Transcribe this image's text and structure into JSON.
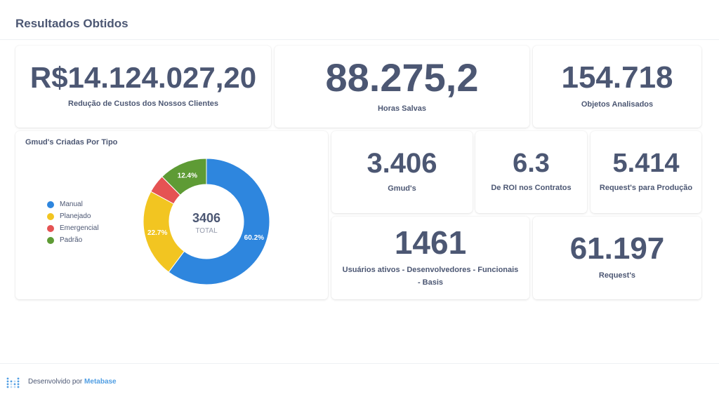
{
  "page": {
    "title": "Resultados Obtidos"
  },
  "cards": {
    "custos": {
      "value": "R$14.124.027,20",
      "label": "Redução de Custos dos Nossos Clientes"
    },
    "horas": {
      "value": "88.275,2",
      "label": "Horas Salvas"
    },
    "objetos": {
      "value": "154.718",
      "label": "Objetos Analisados"
    },
    "gmuds": {
      "value": "3.406",
      "label": "Gmud's"
    },
    "roi": {
      "value": "6.3",
      "label": "De ROI nos Contratos"
    },
    "requests_prod": {
      "value": "5.414",
      "label": "Request's para Produção"
    },
    "usuarios": {
      "value": "1461",
      "label": "Usuários ativos - Desenvolvedores - Funcionais - Basis"
    },
    "requests": {
      "value": "61.197",
      "label": "Request's"
    }
  },
  "chart_data": {
    "type": "pie",
    "title": "Gmud's Criadas Por Tipo",
    "total_value": "3406",
    "total_label": "TOTAL",
    "categories": [
      "Manual",
      "Planejado",
      "Emergencial",
      "Padrão"
    ],
    "values": [
      60.2,
      22.7,
      4.7,
      12.4
    ],
    "data_labels": [
      "60.2%",
      "22.7%",
      "",
      "12.4%"
    ],
    "colors": [
      "#2e86de",
      "#f2c521",
      "#e55353",
      "#5e9b35"
    ],
    "legend_position": "left"
  },
  "footer": {
    "text": "Desenvolvido por",
    "brand": "Metabase",
    "logo_icon": "metabase-logo-icon"
  }
}
